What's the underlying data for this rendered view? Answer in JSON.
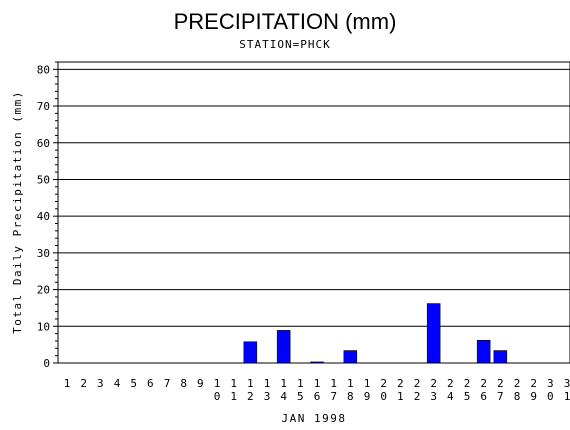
{
  "chart_data": {
    "type": "bar",
    "title": "PRECIPITATION (mm)",
    "subtitle": "STATION=PHCK",
    "xlabel": "JAN 1998",
    "ylabel": "Total Daily Precipitation (mm)",
    "ylim": [
      0,
      82
    ],
    "yticks": [
      0,
      10,
      20,
      30,
      40,
      50,
      60,
      70,
      80
    ],
    "grid": true,
    "categories": [
      "1",
      "2",
      "3",
      "4",
      "5",
      "6",
      "7",
      "8",
      "9",
      "10",
      "11",
      "12",
      "13",
      "14",
      "15",
      "16",
      "17",
      "18",
      "19",
      "20",
      "21",
      "22",
      "23",
      "24",
      "25",
      "26",
      "27",
      "28",
      "29",
      "30",
      "31"
    ],
    "values": [
      0,
      0,
      0,
      0,
      0,
      0,
      0,
      0,
      0,
      0,
      0,
      5.8,
      0,
      8.9,
      0,
      0.3,
      0,
      3.4,
      0,
      0,
      0,
      0,
      16.2,
      0,
      0,
      6.2,
      3.4,
      0,
      0,
      0,
      0
    ],
    "bar_color": "#0000ff"
  }
}
